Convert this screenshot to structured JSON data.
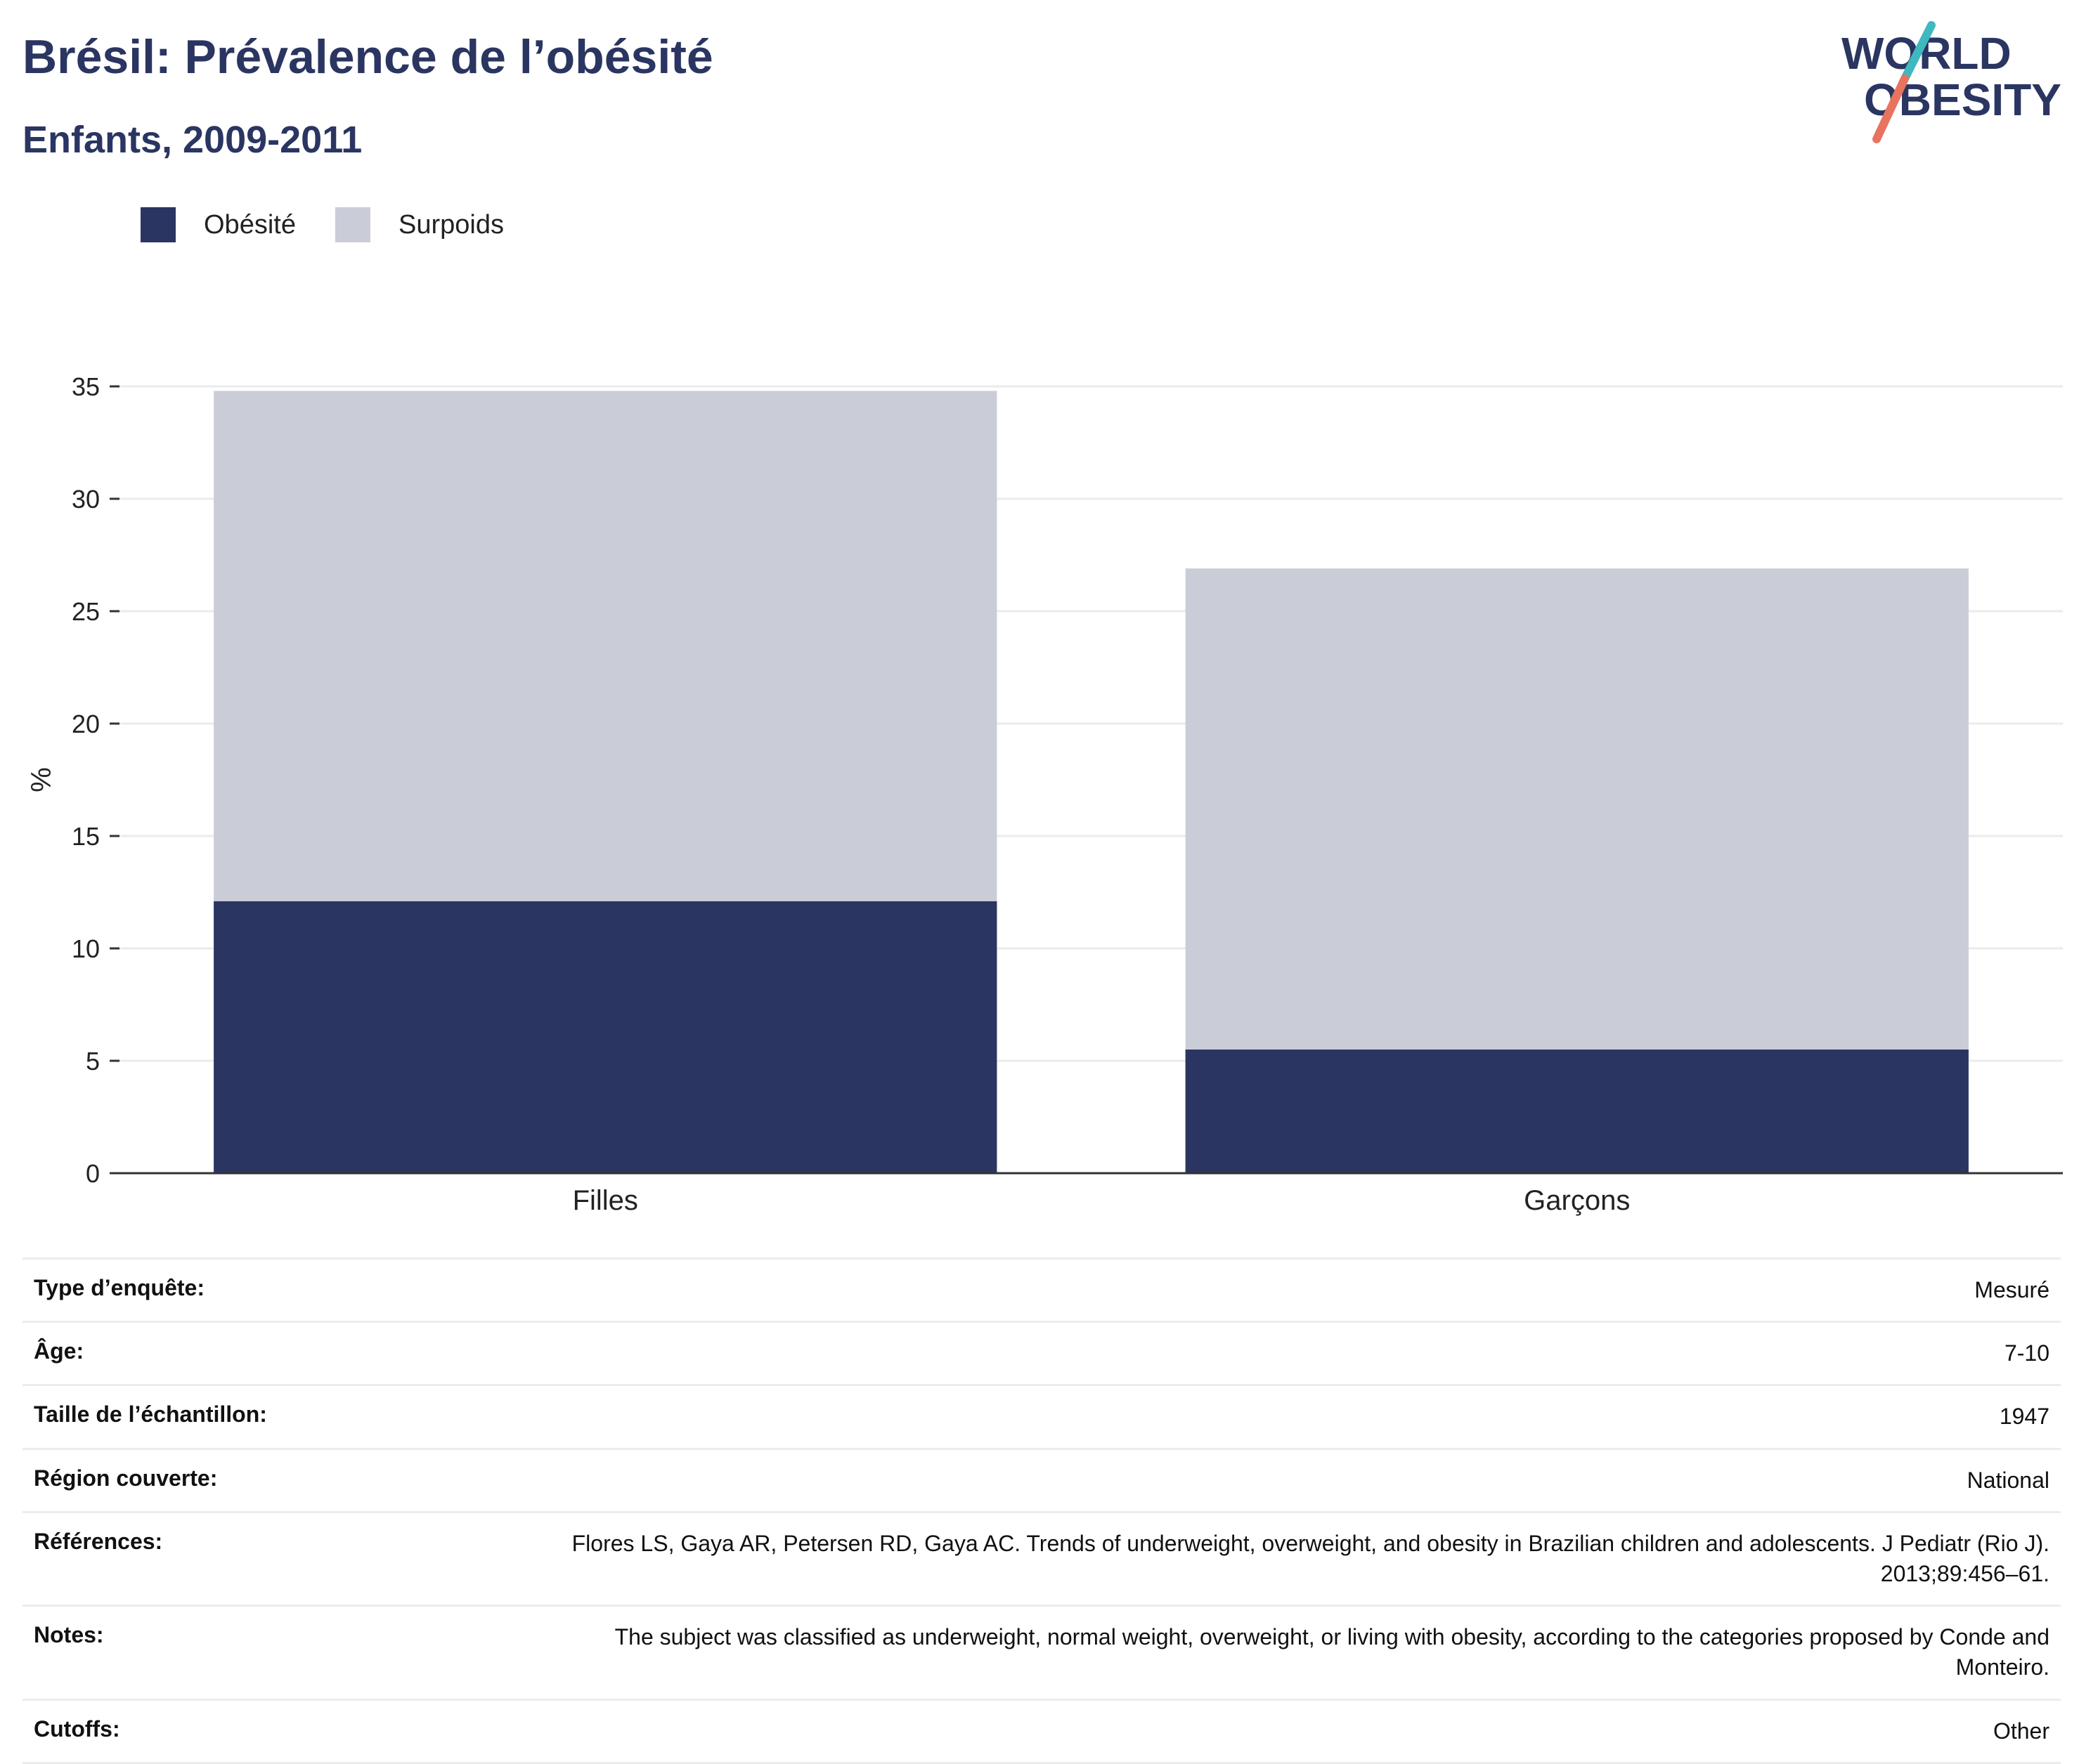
{
  "header": {
    "title": "Brésil: Prévalence de l’obésité",
    "subtitle": "Enfants, 2009-2011"
  },
  "logo": {
    "line1": "WORLD",
    "line2": "OBESITY",
    "colors": {
      "text": "#2a3561",
      "slash_top": "#3fb8c0",
      "slash_bottom": "#e8735f"
    }
  },
  "legend": [
    {
      "label": "Obésité",
      "color": "#2a3561"
    },
    {
      "label": "Surpoids",
      "color": "#cacdd8"
    }
  ],
  "chart_data": {
    "type": "bar",
    "stacked": true,
    "categories": [
      "Filles",
      "Garçons"
    ],
    "series": [
      {
        "name": "Obésité",
        "values": [
          12.1,
          5.5
        ],
        "color": "#2a3561"
      },
      {
        "name": "Surpoids",
        "values": [
          22.7,
          21.4
        ],
        "color": "#cacdd8"
      }
    ],
    "ylabel": "%",
    "xlabel": "",
    "ylim": [
      0,
      35
    ],
    "yticks": [
      0,
      5,
      10,
      15,
      20,
      25,
      30,
      35
    ],
    "grid": true,
    "legend_position": "top-left"
  },
  "metadata": [
    {
      "key": "Type d’enquête:",
      "value": "Mesuré"
    },
    {
      "key": "Âge:",
      "value": "7-10"
    },
    {
      "key": "Taille de l’échantillon:",
      "value": "1947"
    },
    {
      "key": "Région couverte:",
      "value": "National"
    },
    {
      "key": "Références:",
      "value": "Flores LS, Gaya AR, Petersen RD, Gaya AC. Trends of underweight, overweight, and obesity in Brazilian children and adolescents. J Pediatr (Rio J). 2013;89:456–61."
    },
    {
      "key": "Notes:",
      "value": "The subject was classified as underweight, normal weight, overweight, or living with obesity, according to the categories proposed by Conde and Monteiro."
    },
    {
      "key": "Cutoffs:",
      "value": "Other"
    }
  ]
}
